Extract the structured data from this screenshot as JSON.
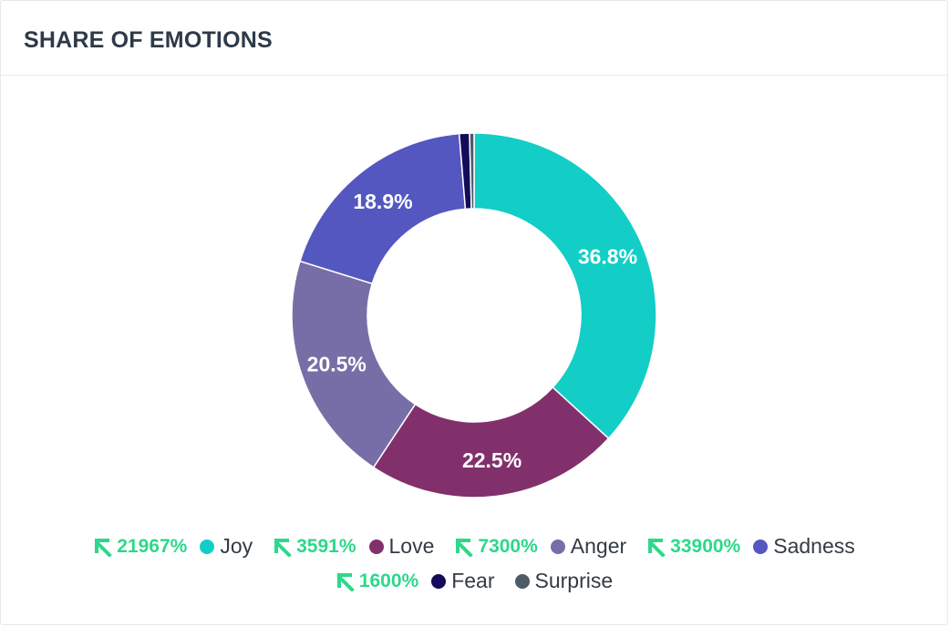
{
  "header": {
    "title": "SHARE OF EMOTIONS"
  },
  "chart_data": {
    "type": "pie",
    "donut": true,
    "title": "SHARE OF EMOTIONS",
    "legend_position": "bottom",
    "slices": [
      {
        "name": "Joy",
        "value": 36.8,
        "label": "36.8%",
        "color": "#12cec6",
        "change": "21967%"
      },
      {
        "name": "Love",
        "value": 22.5,
        "label": "22.5%",
        "color": "#82306c",
        "change": "3591%"
      },
      {
        "name": "Anger",
        "value": 20.5,
        "label": "20.5%",
        "color": "#786ea7",
        "change": "7300%"
      },
      {
        "name": "Sadness",
        "value": 18.9,
        "label": "18.9%",
        "color": "#5457bf",
        "change": "33900%"
      },
      {
        "name": "Fear",
        "value": 0.9,
        "label": "",
        "color": "#130c5a",
        "change": "1600%"
      },
      {
        "name": "Surprise",
        "value": 0.4,
        "label": "",
        "color": "#4f5a67",
        "change": ""
      }
    ]
  }
}
